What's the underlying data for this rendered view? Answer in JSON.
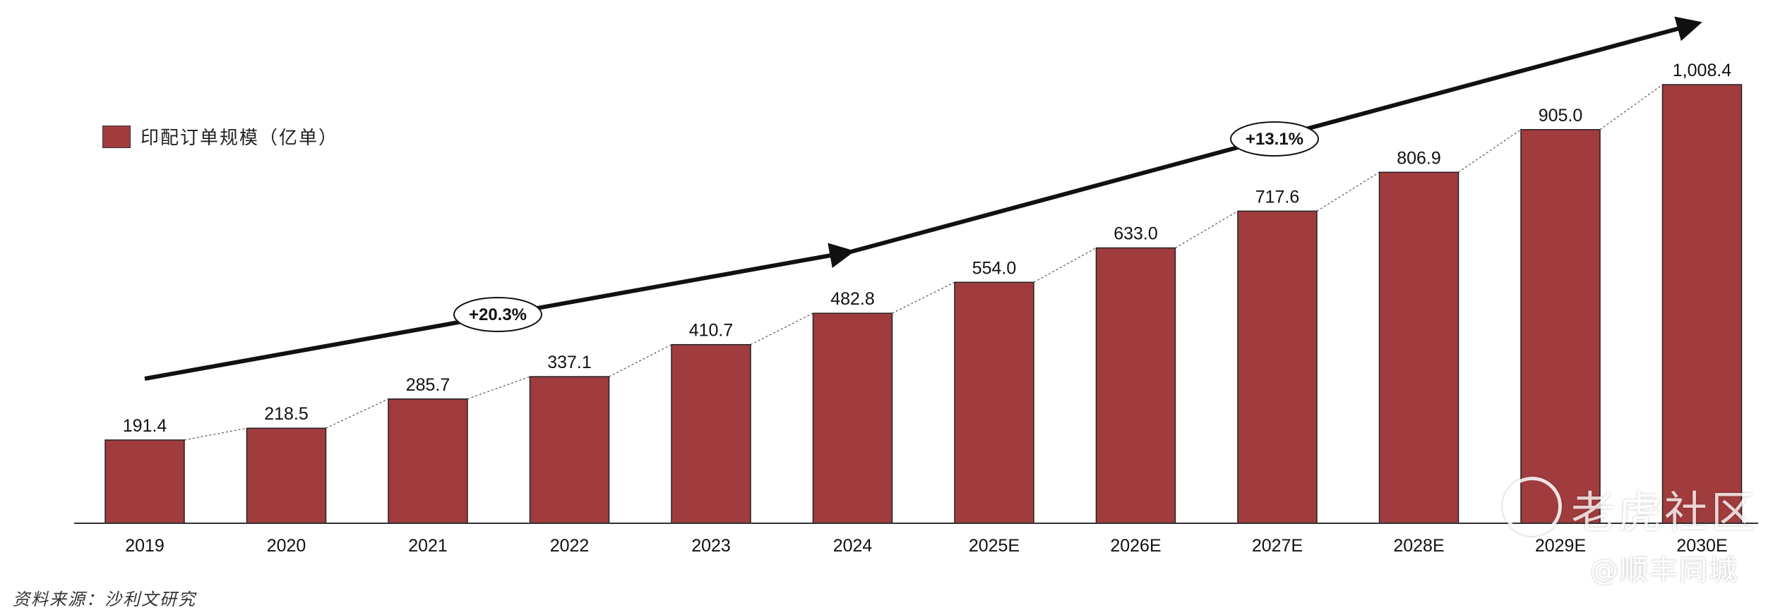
{
  "chart_data": {
    "type": "bar",
    "categories": [
      "2019",
      "2020",
      "2021",
      "2022",
      "2023",
      "2024",
      "2025E",
      "2026E",
      "2027E",
      "2028E",
      "2029E",
      "2030E"
    ],
    "series": [
      {
        "name": "印配订单规模（亿单）",
        "values": [
          191.4,
          218.5,
          285.7,
          337.1,
          410.7,
          482.8,
          554.0,
          633.0,
          717.6,
          806.9,
          905.0,
          1008.4
        ]
      }
    ],
    "value_labels": [
      "191.4",
      "218.5",
      "285.7",
      "337.1",
      "410.7",
      "482.8",
      "554.0",
      "633.0",
      "717.6",
      "806.9",
      "905.0",
      "1,008.4"
    ],
    "ylim": [
      0,
      1008.4
    ],
    "annotations": [
      {
        "text": "+20.3%",
        "from": "2019",
        "to": "2024"
      },
      {
        "text": "+13.1%",
        "from": "2024",
        "to": "2030E"
      }
    ],
    "bar_color": "#a03c3e",
    "legend_position": "top-left",
    "grid": false
  },
  "source_note": "资料来源：沙利文研究",
  "watermark": {
    "main": "老虎社区",
    "sub": "@顺丰同城",
    "logo_icon": "tiger-logo-icon"
  }
}
